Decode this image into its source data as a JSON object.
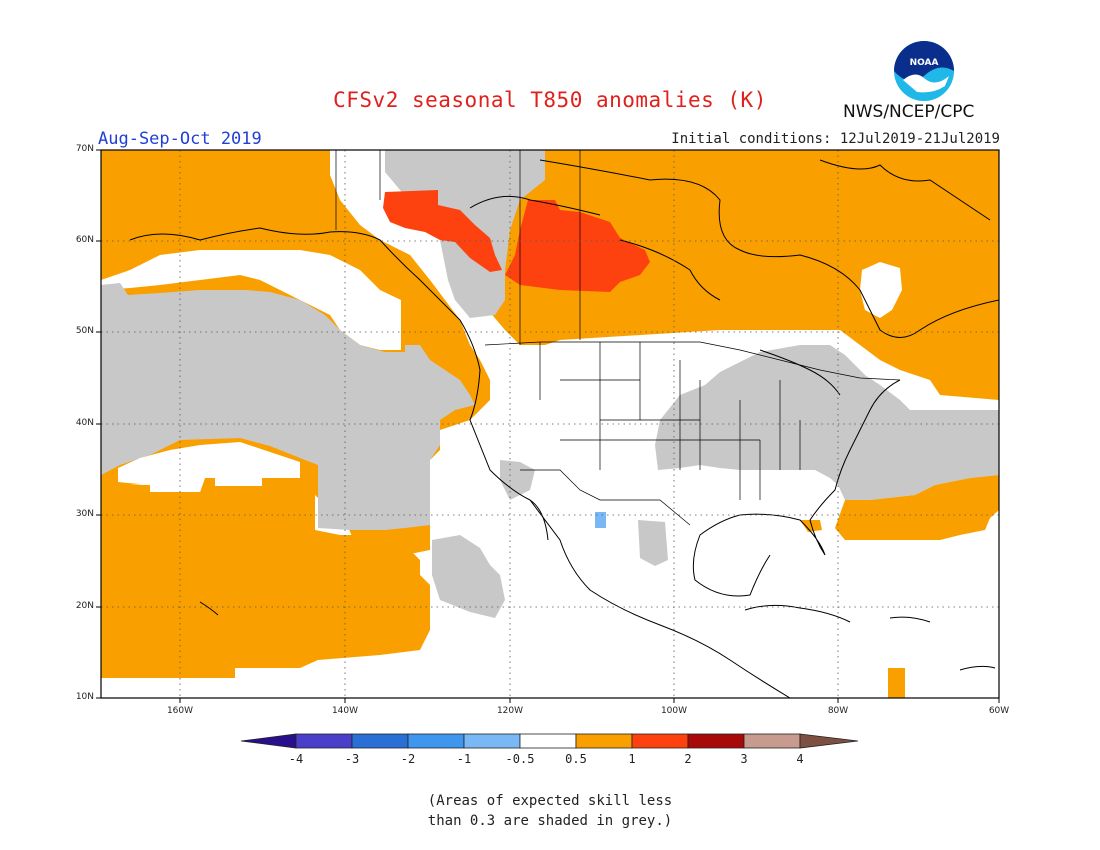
{
  "title": "CFSv2 seasonal T850 anomalies (K)",
  "agency": "NWS/NCEP/CPC",
  "logo_text": "NOAA",
  "season": "Aug-Sep-Oct 2019",
  "initial_conditions": "Initial conditions: 12Jul2019-21Jul2019",
  "lat_labels": [
    "70N",
    "60N",
    "50N",
    "40N",
    "30N",
    "20N",
    "10N"
  ],
  "lon_labels": [
    "160W",
    "140W",
    "120W",
    "100W",
    "80W",
    "60W"
  ],
  "colorbar": {
    "labels": [
      "-4",
      "-3",
      "-2",
      "-1",
      "-0.5",
      "0.5",
      "1",
      "2",
      "3",
      "4"
    ],
    "colors": [
      "#2a0f8c",
      "#4a3fc8",
      "#2a6fd6",
      "#3f96ee",
      "#7ab8f5",
      "#ffffff",
      "#f9a000",
      "#fd4210",
      "#a80a0a",
      "#c79b8d",
      "#7d5042"
    ]
  },
  "colors": {
    "orange": "#f9a000",
    "red_orange": "#fd4210",
    "grey": "#c8c8c8",
    "light_blue": "#7ab8f5"
  },
  "note_line1": "(Areas of expected skill less",
  "note_line2": "than 0.3 are shaded in grey.)"
}
